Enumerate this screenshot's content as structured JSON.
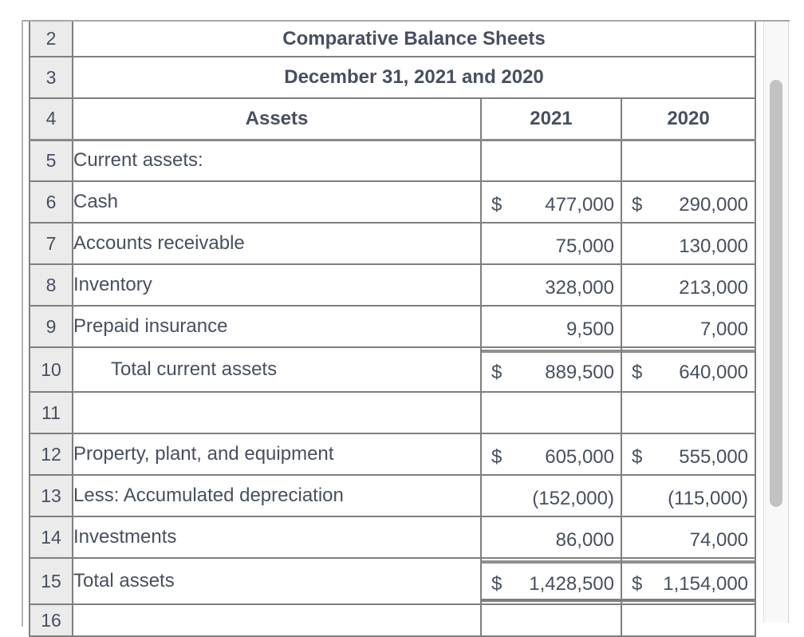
{
  "colors": {
    "text": "#474f5f",
    "gridline": "#7f7f7f",
    "thick_rule": "#8f8f8f",
    "row_header_bg": "#ebebeb",
    "frame_border": "#a6a6a6",
    "scrollbar_track": "#f8f8f8",
    "scrollbar_thumb": "#c2c2c2"
  },
  "spreadsheet": {
    "rows": [
      {
        "num": "2",
        "type": "title",
        "text": "Comparative Balance Sheets"
      },
      {
        "num": "3",
        "type": "title",
        "text": "December 31, 2021 and 2020"
      },
      {
        "num": "4",
        "type": "header",
        "label": "Assets",
        "y2021": "2021",
        "y2020": "2020"
      },
      {
        "num": "5",
        "type": "data",
        "label": "Current assets:"
      },
      {
        "num": "6",
        "type": "data",
        "label": "Cash",
        "dollar1": "$",
        "val1": "477,000",
        "dollar2": "$",
        "val2": "290,000"
      },
      {
        "num": "7",
        "type": "data",
        "label": "Accounts receivable",
        "val1": "75,000",
        "val2": "130,000"
      },
      {
        "num": "8",
        "type": "data",
        "label": "Inventory",
        "val1": "328,000",
        "val2": "213,000"
      },
      {
        "num": "9",
        "type": "data",
        "label": "Prepaid insurance",
        "val1": "9,500",
        "val2": "7,000"
      },
      {
        "num": "10",
        "type": "data",
        "label": "Total current assets",
        "indent": true,
        "dollar1": "$",
        "val1": "889,500",
        "dollar2": "$",
        "val2": "640,000",
        "thick_top": true
      },
      {
        "num": "11",
        "type": "data",
        "label": ""
      },
      {
        "num": "12",
        "type": "data",
        "label": "Property, plant, and equipment",
        "dollar1": "$",
        "val1": "605,000",
        "dollar2": "$",
        "val2": "555,000"
      },
      {
        "num": "13",
        "type": "data",
        "label": "Less: Accumulated depreciation",
        "val1": "(152,000)",
        "val2": "(115,000)"
      },
      {
        "num": "14",
        "type": "data",
        "label": "Investments",
        "val1": "86,000",
        "val2": "74,000"
      },
      {
        "num": "15",
        "type": "data",
        "label": "Total assets",
        "dollar1": "$",
        "val1": "1,428,500",
        "dollar2": "$",
        "val2": "1,154,000",
        "thick_top": true,
        "double_bottom": true
      },
      {
        "num": "16",
        "type": "data",
        "label": ""
      }
    ]
  }
}
